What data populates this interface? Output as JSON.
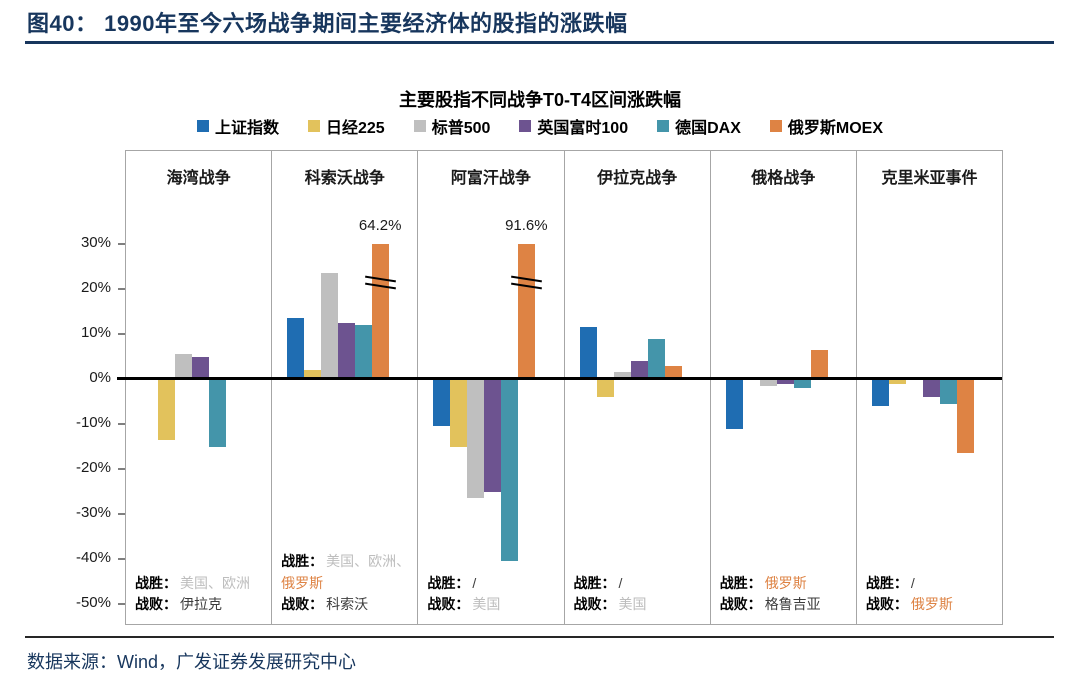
{
  "page": {
    "figure_title": "图40： 1990年至今六场战争期间主要经济体的股指的涨跌幅",
    "source": "数据来源：Wind，广发证券发展研究中心"
  },
  "chart_data": {
    "type": "bar",
    "title": "主要股指不同战争T0-T4区间涨跌幅",
    "unit": "%",
    "ylim": [
      -55,
      50
    ],
    "yticks": [
      30,
      20,
      10,
      0,
      -10,
      -20,
      -30,
      -40,
      -50
    ],
    "ytick_suffix": "%",
    "grid": false,
    "legend_position": "top",
    "series": [
      {
        "name": "上证指数",
        "color": "#1F6DB2"
      },
      {
        "name": "日经225",
        "color": "#E2C25C"
      },
      {
        "name": "标普500",
        "color": "#BFBFBF"
      },
      {
        "name": "英国富时100",
        "color": "#6D5390"
      },
      {
        "name": "德国DAX",
        "color": "#4495AA"
      },
      {
        "name": "俄罗斯MOEX",
        "color": "#DE8344"
      }
    ],
    "annotation_labels": {
      "victor": "战胜：",
      "defeated": "战败："
    },
    "text_colors": {
      "gray": "#BDBDBD",
      "orange": "#DE8344",
      "dark": "#3D3D3D"
    },
    "panels": [
      {
        "war": "海湾战争",
        "values": [
          null,
          -13.5,
          5.5,
          5,
          -15,
          null
        ],
        "victor": [
          {
            "text": "美国、欧洲",
            "color": "gray"
          }
        ],
        "defeated": [
          {
            "text": "伊拉克",
            "color": "dark"
          }
        ]
      },
      {
        "war": "科索沃战争",
        "values": [
          13.5,
          2,
          23.5,
          12.5,
          12,
          64.2
        ],
        "broken_bar": {
          "series_index": 5,
          "shown_value": 30,
          "label": "64.2%",
          "break_at": 21.5
        },
        "victor": [
          {
            "text": "美国、欧洲、",
            "color": "gray"
          },
          {
            "text": "俄罗斯",
            "color": "orange"
          }
        ],
        "defeated": [
          {
            "text": "科索沃",
            "color": "dark"
          }
        ]
      },
      {
        "war": "阿富汗战争",
        "values": [
          -10.5,
          -15,
          -26.5,
          -25,
          -40.5,
          91.6
        ],
        "broken_bar": {
          "series_index": 5,
          "shown_value": 30,
          "label": "91.6%",
          "break_at": 21.5
        },
        "victor": [
          {
            "text": "/",
            "color": "dark"
          }
        ],
        "defeated": [
          {
            "text": "美国",
            "color": "gray"
          }
        ]
      },
      {
        "war": "伊拉克战争",
        "values": [
          11.5,
          -4,
          1.5,
          4,
          9,
          3
        ],
        "victor": [
          {
            "text": "/",
            "color": "dark"
          }
        ],
        "defeated": [
          {
            "text": "美国",
            "color": "gray"
          }
        ]
      },
      {
        "war": "俄格战争",
        "values": [
          -11,
          null,
          -1.5,
          -1,
          -2,
          6.5
        ],
        "victor": [
          {
            "text": "俄罗斯",
            "color": "orange"
          }
        ],
        "defeated": [
          {
            "text": "格鲁吉亚",
            "color": "dark"
          }
        ]
      },
      {
        "war": "克里米亚事件",
        "values": [
          -6,
          -1,
          null,
          -4,
          -5.5,
          -16.5
        ],
        "victor": [
          {
            "text": "/",
            "color": "dark"
          }
        ],
        "defeated": [
          {
            "text": "俄罗斯",
            "color": "orange"
          }
        ]
      }
    ]
  }
}
